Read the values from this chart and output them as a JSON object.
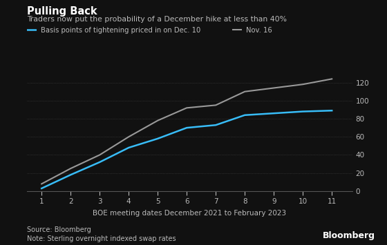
{
  "title": "Pulling Back",
  "subtitle": "Traders now put the probability of a December hike at less than 40%",
  "legend_dec10": "Basis points of tightening priced in on Dec. 10",
  "legend_nov16": "Nov. 16",
  "xlabel": "BOE meeting dates December 2021 to February 2023",
  "source": "Source: Bloomberg",
  "note": "Note: Sterling overnight indexed swap rates",
  "watermark": "Bloomberg",
  "x": [
    1,
    2,
    3,
    4,
    5,
    6,
    7,
    8,
    9,
    10,
    11
  ],
  "dec10_y": [
    3,
    18,
    32,
    48,
    58,
    70,
    73,
    84,
    86,
    88,
    89
  ],
  "nov16_y": [
    8,
    25,
    40,
    60,
    78,
    92,
    95,
    110,
    114,
    118,
    124
  ],
  "dec10_color": "#38BDF8",
  "nov16_color": "#999999",
  "bg_color": "#111111",
  "text_color": "#bbbbbb",
  "title_color": "#ffffff",
  "ylim": [
    0,
    130
  ],
  "yticks": [
    0,
    20,
    40,
    60,
    80,
    100,
    120
  ],
  "xticks": [
    1,
    2,
    3,
    4,
    5,
    6,
    7,
    8,
    9,
    10,
    11
  ]
}
